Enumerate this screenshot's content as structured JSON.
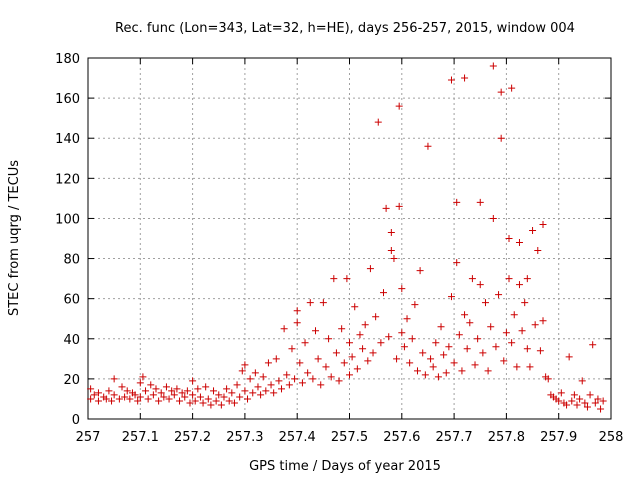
{
  "chart_data": {
    "type": "scatter",
    "title": "Rec. func (Lon=343, Lat=32, h=HE), days 256-257, 2015, window 004",
    "xlabel": "GPS time / Days of year 2015",
    "ylabel": "STEC from uqrg / TECUs",
    "xlim": [
      257,
      258
    ],
    "ylim": [
      0,
      180
    ],
    "xticks": [
      "257",
      "257.1",
      "257.2",
      "257.3",
      "257.4",
      "257.5",
      "257.6",
      "257.7",
      "257.8",
      "257.9",
      "258"
    ],
    "yticks": [
      "0",
      "20",
      "40",
      "60",
      "80",
      "100",
      "120",
      "140",
      "160",
      "180"
    ],
    "grid": true,
    "marker": "plus",
    "color": "#cc0000",
    "series": [
      {
        "points": [
          [
            257.005,
            15
          ],
          [
            257.005,
            10
          ],
          [
            257.012,
            12
          ],
          [
            257.02,
            9
          ],
          [
            257.02,
            13
          ],
          [
            257.03,
            11
          ],
          [
            257.035,
            10
          ],
          [
            257.04,
            14
          ],
          [
            257.045,
            9
          ],
          [
            257.05,
            12
          ],
          [
            257.05,
            20
          ],
          [
            257.06,
            10
          ],
          [
            257.065,
            16
          ],
          [
            257.07,
            11
          ],
          [
            257.075,
            14
          ],
          [
            257.08,
            10
          ],
          [
            257.085,
            13
          ],
          [
            257.09,
            12
          ],
          [
            257.095,
            9
          ],
          [
            257.1,
            18
          ],
          [
            257.1,
            11
          ],
          [
            257.105,
            21
          ],
          [
            257.11,
            14
          ],
          [
            257.115,
            10
          ],
          [
            257.12,
            17
          ],
          [
            257.125,
            12
          ],
          [
            257.13,
            15
          ],
          [
            257.135,
            9
          ],
          [
            257.14,
            13
          ],
          [
            257.145,
            11
          ],
          [
            257.15,
            16
          ],
          [
            257.155,
            10
          ],
          [
            257.16,
            14
          ],
          [
            257.165,
            12
          ],
          [
            257.17,
            15
          ],
          [
            257.175,
            9
          ],
          [
            257.18,
            13
          ],
          [
            257.185,
            11
          ],
          [
            257.19,
            14
          ],
          [
            257.195,
            8
          ],
          [
            257.2,
            12
          ],
          [
            257.2,
            19
          ],
          [
            257.205,
            9
          ],
          [
            257.21,
            15
          ],
          [
            257.215,
            11
          ],
          [
            257.22,
            8
          ],
          [
            257.225,
            16
          ],
          [
            257.23,
            10
          ],
          [
            257.235,
            7
          ],
          [
            257.24,
            14
          ],
          [
            257.245,
            9
          ],
          [
            257.25,
            12
          ],
          [
            257.255,
            7
          ],
          [
            257.26,
            11
          ],
          [
            257.265,
            15
          ],
          [
            257.27,
            9
          ],
          [
            257.275,
            13
          ],
          [
            257.28,
            8
          ],
          [
            257.285,
            17
          ],
          [
            257.29,
            11
          ],
          [
            257.295,
            24
          ],
          [
            257.3,
            14
          ],
          [
            257.3,
            27
          ],
          [
            257.305,
            10
          ],
          [
            257.31,
            20
          ],
          [
            257.315,
            13
          ],
          [
            257.32,
            23
          ],
          [
            257.325,
            16
          ],
          [
            257.33,
            12
          ],
          [
            257.335,
            21
          ],
          [
            257.34,
            14
          ],
          [
            257.345,
            28
          ],
          [
            257.35,
            17
          ],
          [
            257.355,
            13
          ],
          [
            257.36,
            30
          ],
          [
            257.365,
            19
          ],
          [
            257.37,
            15
          ],
          [
            257.375,
            45
          ],
          [
            257.38,
            22
          ],
          [
            257.385,
            17
          ],
          [
            257.39,
            35
          ],
          [
            257.395,
            20
          ],
          [
            257.4,
            48
          ],
          [
            257.4,
            54
          ],
          [
            257.405,
            28
          ],
          [
            257.41,
            18
          ],
          [
            257.415,
            38
          ],
          [
            257.42,
            23
          ],
          [
            257.425,
            58
          ],
          [
            257.43,
            20
          ],
          [
            257.435,
            44
          ],
          [
            257.44,
            30
          ],
          [
            257.445,
            17
          ],
          [
            257.45,
            58
          ],
          [
            257.455,
            26
          ],
          [
            257.46,
            40
          ],
          [
            257.465,
            21
          ],
          [
            257.47,
            70
          ],
          [
            257.475,
            33
          ],
          [
            257.48,
            19
          ],
          [
            257.485,
            45
          ],
          [
            257.49,
            28
          ],
          [
            257.495,
            70
          ],
          [
            257.5,
            22
          ],
          [
            257.5,
            38
          ],
          [
            257.505,
            31
          ],
          [
            257.51,
            56
          ],
          [
            257.515,
            25
          ],
          [
            257.52,
            42
          ],
          [
            257.525,
            35
          ],
          [
            257.53,
            47
          ],
          [
            257.535,
            29
          ],
          [
            257.54,
            75
          ],
          [
            257.545,
            33
          ],
          [
            257.55,
            51
          ],
          [
            257.555,
            148
          ],
          [
            257.56,
            38
          ],
          [
            257.565,
            63
          ],
          [
            257.57,
            105
          ],
          [
            257.575,
            41
          ],
          [
            257.58,
            93
          ],
          [
            257.58,
            84
          ],
          [
            257.585,
            80
          ],
          [
            257.59,
            30
          ],
          [
            257.595,
            156
          ],
          [
            257.595,
            106
          ],
          [
            257.6,
            65
          ],
          [
            257.6,
            43
          ],
          [
            257.605,
            36
          ],
          [
            257.61,
            50
          ],
          [
            257.615,
            28
          ],
          [
            257.62,
            40
          ],
          [
            257.625,
            57
          ],
          [
            257.63,
            24
          ],
          [
            257.635,
            74
          ],
          [
            257.64,
            33
          ],
          [
            257.645,
            22
          ],
          [
            257.65,
            136
          ],
          [
            257.655,
            30
          ],
          [
            257.66,
            26
          ],
          [
            257.665,
            38
          ],
          [
            257.67,
            21
          ],
          [
            257.675,
            46
          ],
          [
            257.68,
            32
          ],
          [
            257.685,
            23
          ],
          [
            257.69,
            36
          ],
          [
            257.695,
            61
          ],
          [
            257.695,
            169
          ],
          [
            257.7,
            28
          ],
          [
            257.705,
            108
          ],
          [
            257.705,
            78
          ],
          [
            257.71,
            42
          ],
          [
            257.715,
            24
          ],
          [
            257.72,
            170
          ],
          [
            257.72,
            52
          ],
          [
            257.725,
            35
          ],
          [
            257.73,
            48
          ],
          [
            257.735,
            70
          ],
          [
            257.74,
            27
          ],
          [
            257.745,
            40
          ],
          [
            257.75,
            108
          ],
          [
            257.75,
            67
          ],
          [
            257.755,
            33
          ],
          [
            257.76,
            58
          ],
          [
            257.765,
            24
          ],
          [
            257.77,
            46
          ],
          [
            257.775,
            176
          ],
          [
            257.775,
            100
          ],
          [
            257.78,
            36
          ],
          [
            257.785,
            62
          ],
          [
            257.79,
            140
          ],
          [
            257.79,
            163
          ],
          [
            257.795,
            29
          ],
          [
            257.8,
            43
          ],
          [
            257.805,
            90
          ],
          [
            257.805,
            70
          ],
          [
            257.81,
            165
          ],
          [
            257.81,
            38
          ],
          [
            257.815,
            52
          ],
          [
            257.82,
            26
          ],
          [
            257.825,
            88
          ],
          [
            257.825,
            67
          ],
          [
            257.83,
            44
          ],
          [
            257.835,
            58
          ],
          [
            257.84,
            70
          ],
          [
            257.84,
            35
          ],
          [
            257.845,
            26
          ],
          [
            257.85,
            94
          ],
          [
            257.855,
            47
          ],
          [
            257.86,
            84
          ],
          [
            257.865,
            34
          ],
          [
            257.87,
            97
          ],
          [
            257.87,
            49
          ],
          [
            257.875,
            21
          ],
          [
            257.88,
            20
          ],
          [
            257.885,
            12
          ],
          [
            257.89,
            11
          ],
          [
            257.895,
            10
          ],
          [
            257.9,
            9
          ],
          [
            257.905,
            13
          ],
          [
            257.91,
            8
          ],
          [
            257.915,
            7
          ],
          [
            257.92,
            31
          ],
          [
            257.925,
            9
          ],
          [
            257.93,
            12
          ],
          [
            257.935,
            7
          ],
          [
            257.94,
            10
          ],
          [
            257.945,
            19
          ],
          [
            257.95,
            8
          ],
          [
            257.955,
            6
          ],
          [
            257.96,
            12
          ],
          [
            257.965,
            37
          ],
          [
            257.97,
            8
          ],
          [
            257.975,
            10
          ],
          [
            257.98,
            5
          ],
          [
            257.985,
            9
          ]
        ]
      }
    ]
  }
}
